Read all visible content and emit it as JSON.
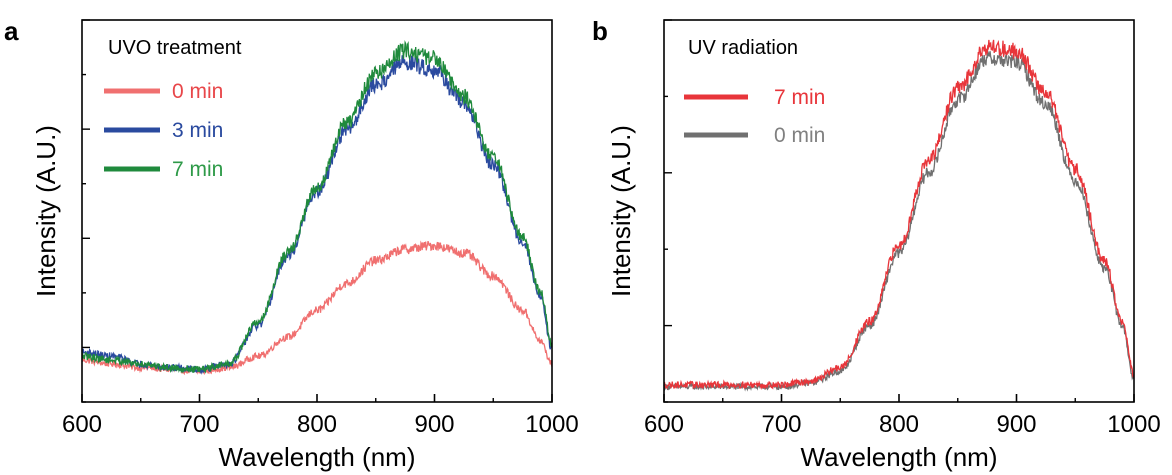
{
  "chart_data": [
    {
      "type": "line",
      "panel_label": "a",
      "xlabel": "Wavelength (nm)",
      "ylabel": "Intensity (A.U.)",
      "xlim": [
        600,
        1000
      ],
      "ylim": [
        0,
        1
      ],
      "x_ticks": [
        "600",
        "700",
        "800",
        "900",
        "1000"
      ],
      "legend_title": "UVO treatment",
      "legend_position": "top-left",
      "grid": false,
      "series": [
        {
          "name": "0 min",
          "color": "#f07070",
          "label_color": "#e8474a",
          "noise": 0.012,
          "x": [
            600,
            625,
            650,
            675,
            700,
            725,
            750,
            775,
            800,
            825,
            850,
            875,
            900,
            925,
            950,
            975,
            990,
            1000
          ],
          "y": [
            0.11,
            0.1,
            0.09,
            0.085,
            0.08,
            0.09,
            0.12,
            0.17,
            0.24,
            0.31,
            0.37,
            0.4,
            0.41,
            0.39,
            0.33,
            0.24,
            0.16,
            0.1
          ]
        },
        {
          "name": "3 min",
          "color": "#2a4a9f",
          "label_color": "#2a4a9f",
          "noise": 0.013,
          "x": [
            600,
            625,
            650,
            675,
            700,
            725,
            750,
            775,
            800,
            825,
            850,
            875,
            900,
            925,
            950,
            975,
            990,
            1000
          ],
          "y": [
            0.13,
            0.12,
            0.1,
            0.09,
            0.085,
            0.1,
            0.2,
            0.38,
            0.55,
            0.71,
            0.83,
            0.89,
            0.87,
            0.78,
            0.62,
            0.42,
            0.28,
            0.14
          ]
        },
        {
          "name": "7 min",
          "color": "#1f8a3c",
          "label_color": "#2e9a48",
          "noise": 0.013,
          "x": [
            600,
            625,
            650,
            675,
            700,
            725,
            750,
            775,
            800,
            825,
            850,
            875,
            900,
            925,
            950,
            975,
            990,
            1000
          ],
          "y": [
            0.12,
            0.11,
            0.1,
            0.09,
            0.085,
            0.1,
            0.21,
            0.39,
            0.56,
            0.73,
            0.86,
            0.92,
            0.9,
            0.8,
            0.64,
            0.43,
            0.29,
            0.15
          ]
        }
      ]
    },
    {
      "type": "line",
      "panel_label": "b",
      "xlabel": "Wavelength (nm)",
      "ylabel": "Intensity (A.U.)",
      "xlim": [
        600,
        1000
      ],
      "ylim": [
        0,
        1
      ],
      "x_ticks": [
        "600",
        "700",
        "800",
        "900",
        "1000"
      ],
      "legend_title": "UV radiation",
      "legend_position": "top-left",
      "grid": false,
      "series": [
        {
          "name": "0 min",
          "color": "#707070",
          "label_color": "#808080",
          "noise": 0.012,
          "x": [
            600,
            625,
            650,
            675,
            700,
            725,
            750,
            775,
            800,
            825,
            850,
            875,
            900,
            925,
            950,
            975,
            990,
            1000
          ],
          "y": [
            0.04,
            0.04,
            0.04,
            0.04,
            0.04,
            0.05,
            0.08,
            0.2,
            0.39,
            0.6,
            0.79,
            0.9,
            0.89,
            0.78,
            0.58,
            0.35,
            0.2,
            0.06
          ]
        },
        {
          "name": "7 min",
          "color": "#e8353a",
          "label_color": "#e8353a",
          "noise": 0.013,
          "x": [
            600,
            625,
            650,
            675,
            700,
            725,
            750,
            775,
            800,
            825,
            850,
            875,
            900,
            925,
            950,
            975,
            990,
            1000
          ],
          "y": [
            0.045,
            0.045,
            0.045,
            0.045,
            0.045,
            0.055,
            0.09,
            0.21,
            0.41,
            0.63,
            0.82,
            0.93,
            0.92,
            0.81,
            0.61,
            0.37,
            0.21,
            0.07
          ]
        }
      ]
    }
  ]
}
